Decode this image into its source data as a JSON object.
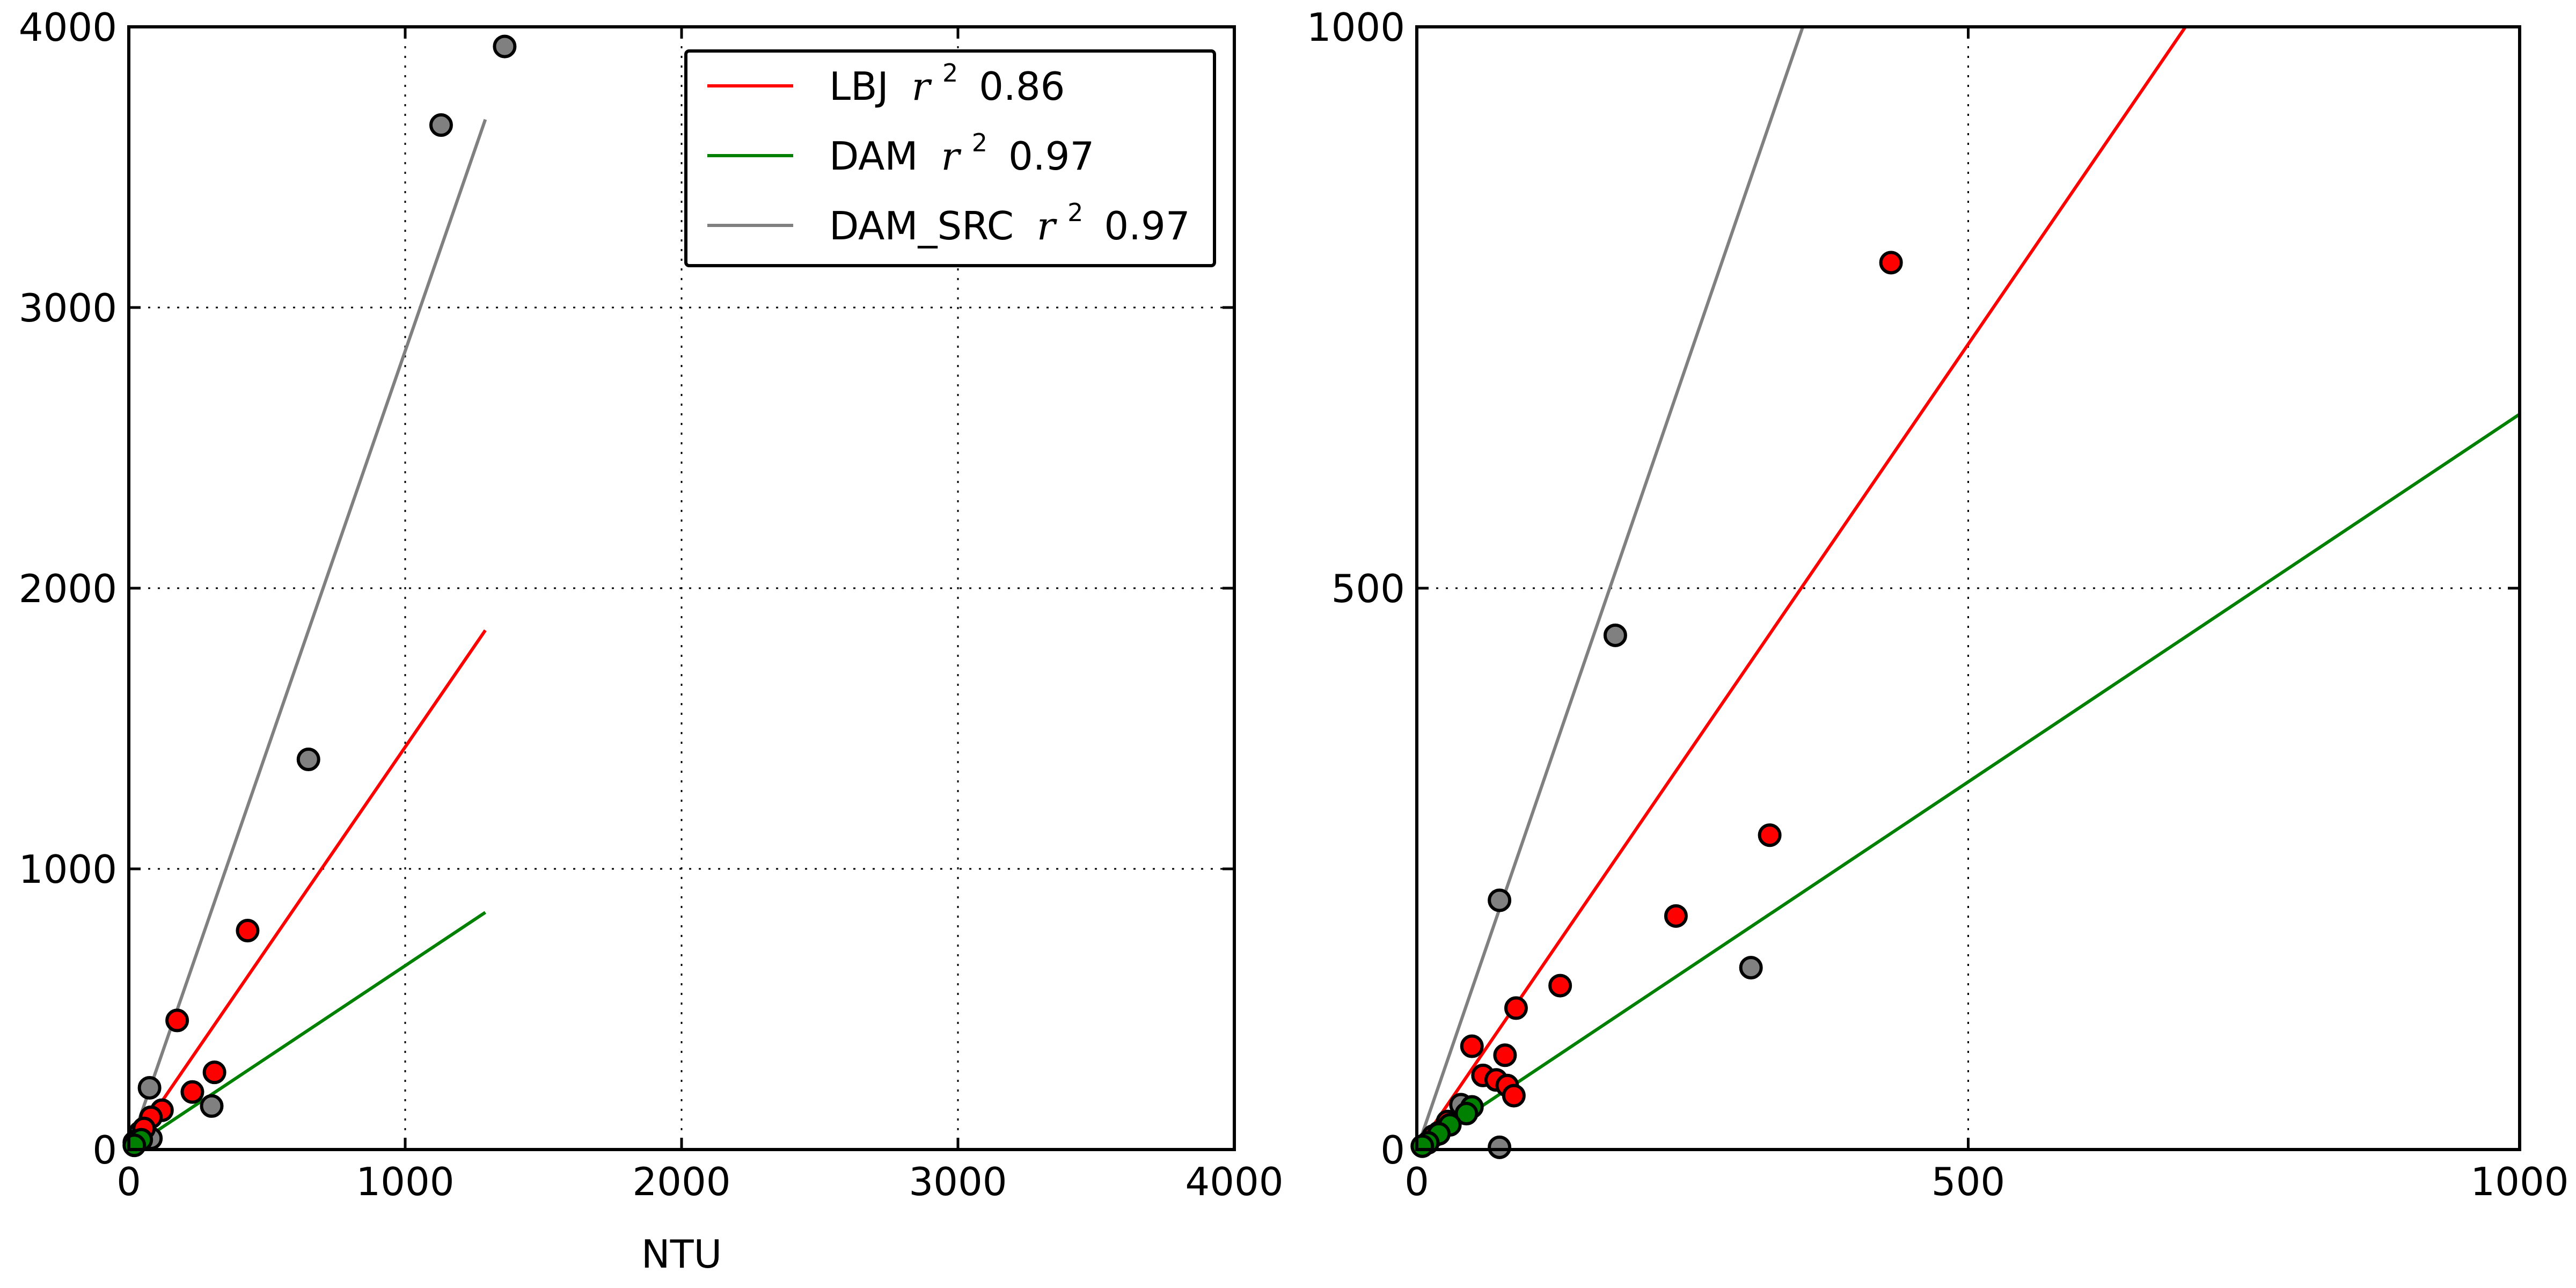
{
  "colors": {
    "LBJ": "#ff0000",
    "DAM": "#008000",
    "DAM_SRC": "#808080",
    "marker_edge": "#000000"
  },
  "legend": {
    "placement": "top-right",
    "entries": [
      {
        "series": "LBJ",
        "label": "LBJ",
        "r2_symbol": "r",
        "r2_exp": "2",
        "r2_value": "0.86"
      },
      {
        "series": "DAM",
        "label": "DAM",
        "r2_symbol": "r",
        "r2_exp": "2",
        "r2_value": "0.97"
      },
      {
        "series": "DAM_SRC",
        "label": "DAM_SRC",
        "r2_symbol": "r",
        "r2_exp": "2",
        "r2_value": "0.97"
      }
    ]
  },
  "chart_data": [
    {
      "type": "scatter",
      "title": "",
      "xlabel": "NTU",
      "ylabel": "",
      "xlim": [
        0,
        4000
      ],
      "ylim": [
        0,
        4000
      ],
      "xticks": [
        "0",
        "1000",
        "2000",
        "3000",
        "4000"
      ],
      "yticks": [
        "0",
        "1000",
        "2000",
        "3000",
        "4000"
      ],
      "grid": true,
      "legend": "top-right",
      "fit_lines": [
        {
          "series": "LBJ",
          "x": [
            0,
            1290
          ],
          "y": [
            0,
            1850
          ]
        },
        {
          "series": "DAM",
          "x": [
            0,
            1290
          ],
          "y": [
            0,
            845
          ]
        },
        {
          "series": "DAM_SRC",
          "x": [
            0,
            1290
          ],
          "y": [
            0,
            3670
          ]
        }
      ],
      "points": [
        {
          "series": "DAM_SRC",
          "x": 1360,
          "y": 3930
        },
        {
          "series": "DAM_SRC",
          "x": 1130,
          "y": 3650
        },
        {
          "series": "DAM_SRC",
          "x": 650,
          "y": 1390
        },
        {
          "series": "DAM_SRC",
          "x": 300,
          "y": 155
        },
        {
          "series": "DAM_SRC",
          "x": 75,
          "y": 220
        },
        {
          "series": "DAM_SRC",
          "x": 80,
          "y": 40
        },
        {
          "series": "DAM_SRC",
          "x": 40,
          "y": 60
        },
        {
          "series": "DAM_SRC",
          "x": 20,
          "y": 25
        },
        {
          "series": "LBJ",
          "x": 430,
          "y": 780
        },
        {
          "series": "LBJ",
          "x": 175,
          "y": 460
        },
        {
          "series": "LBJ",
          "x": 310,
          "y": 275
        },
        {
          "series": "LBJ",
          "x": 230,
          "y": 205
        },
        {
          "series": "LBJ",
          "x": 120,
          "y": 140
        },
        {
          "series": "LBJ",
          "x": 80,
          "y": 115
        },
        {
          "series": "LBJ",
          "x": 55,
          "y": 75
        },
        {
          "series": "LBJ",
          "x": 25,
          "y": 30
        },
        {
          "series": "DAM",
          "x": 45,
          "y": 35
        },
        {
          "series": "DAM",
          "x": 20,
          "y": 15
        }
      ]
    },
    {
      "type": "scatter",
      "title": "",
      "xlabel": "",
      "ylabel": "",
      "xlim": [
        0,
        1000
      ],
      "ylim": [
        0,
        1000
      ],
      "xticks": [
        "0",
        "500",
        "1000"
      ],
      "yticks": [
        "0",
        "500",
        "1000"
      ],
      "grid": true,
      "fit_lines": [
        {
          "series": "LBJ",
          "x": [
            0,
            697
          ],
          "y": [
            0,
            1000
          ]
        },
        {
          "series": "DAM",
          "x": [
            0,
            1000
          ],
          "y": [
            0,
            655
          ]
        },
        {
          "series": "DAM_SRC",
          "x": [
            0,
            350
          ],
          "y": [
            0,
            1000
          ]
        }
      ],
      "points": [
        {
          "series": "DAM_SRC",
          "x": 180,
          "y": 458
        },
        {
          "series": "DAM_SRC",
          "x": 75,
          "y": 222
        },
        {
          "series": "DAM_SRC",
          "x": 303,
          "y": 162
        },
        {
          "series": "DAM_SRC",
          "x": 75,
          "y": 2
        },
        {
          "series": "DAM_SRC",
          "x": 40,
          "y": 40
        },
        {
          "series": "DAM_SRC",
          "x": 20,
          "y": 15
        },
        {
          "series": "LBJ",
          "x": 430,
          "y": 790
        },
        {
          "series": "LBJ",
          "x": 320,
          "y": 280
        },
        {
          "series": "LBJ",
          "x": 235,
          "y": 208
        },
        {
          "series": "LBJ",
          "x": 130,
          "y": 146
        },
        {
          "series": "LBJ",
          "x": 90,
          "y": 126
        },
        {
          "series": "LBJ",
          "x": 50,
          "y": 92
        },
        {
          "series": "LBJ",
          "x": 80,
          "y": 84
        },
        {
          "series": "LBJ",
          "x": 60,
          "y": 66
        },
        {
          "series": "LBJ",
          "x": 72,
          "y": 62
        },
        {
          "series": "LBJ",
          "x": 82,
          "y": 57
        },
        {
          "series": "LBJ",
          "x": 88,
          "y": 48
        },
        {
          "series": "LBJ",
          "x": 28,
          "y": 25
        },
        {
          "series": "LBJ",
          "x": 15,
          "y": 12
        },
        {
          "series": "DAM",
          "x": 50,
          "y": 38
        },
        {
          "series": "DAM",
          "x": 45,
          "y": 32
        },
        {
          "series": "DAM",
          "x": 30,
          "y": 22
        },
        {
          "series": "DAM",
          "x": 20,
          "y": 14
        },
        {
          "series": "DAM",
          "x": 10,
          "y": 6
        },
        {
          "series": "DAM",
          "x": 5,
          "y": 3
        }
      ]
    }
  ]
}
